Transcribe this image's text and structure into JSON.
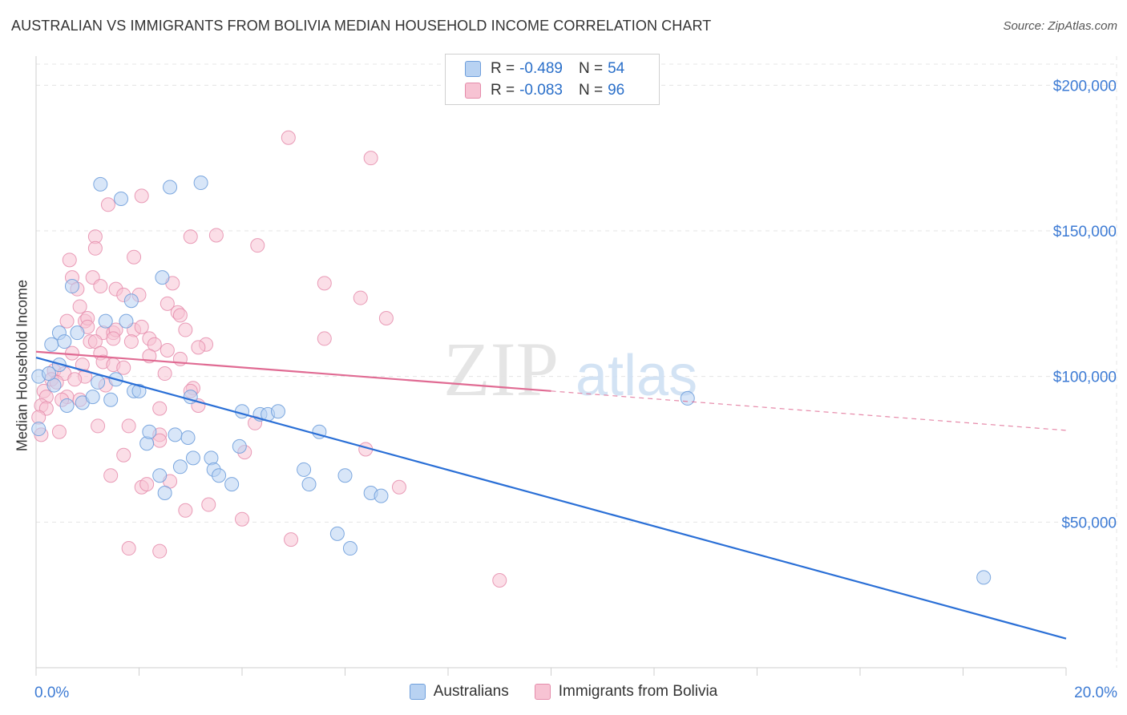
{
  "title": "AUSTRALIAN VS IMMIGRANTS FROM BOLIVIA MEDIAN HOUSEHOLD INCOME CORRELATION CHART",
  "source": "Source: ZipAtlas.com",
  "watermark": {
    "zip": "ZIP",
    "atlas": "atlas"
  },
  "colors": {
    "blue": "#2a6fd6",
    "blue_fill": "#b8d2f2",
    "blue_stroke": "#6f9fdc",
    "pink": "#e06b93",
    "pink_fill": "#f7c3d3",
    "pink_stroke": "#e58cab",
    "tick_text": "#3d7bd4"
  },
  "legend": {
    "rows": [
      {
        "r_label": "R =",
        "r_value": "-0.489",
        "n_label": "N =",
        "n_value": "54"
      },
      {
        "r_label": "R =",
        "r_value": "-0.083",
        "n_label": "N =",
        "n_value": "96"
      }
    ]
  },
  "bottom_legend": {
    "series1": "Australians",
    "series2": "Immigrants from Bolivia"
  },
  "chart_data": {
    "type": "scatter",
    "title": "AUSTRALIAN VS IMMIGRANTS FROM BOLIVIA MEDIAN HOUSEHOLD INCOME CORRELATION CHART",
    "xlabel": "",
    "ylabel": "Median Household Income",
    "xlim": [
      0,
      20
    ],
    "ylim": [
      0,
      210000
    ],
    "x_tick_labels": [
      "0.0%",
      "20.0%"
    ],
    "y_ticks": [
      50000,
      100000,
      150000,
      200000
    ],
    "y_tick_labels": [
      "$50,000",
      "$100,000",
      "$150,000",
      "$200,000"
    ],
    "grid": true,
    "legend_placement": "top-center",
    "series": [
      {
        "name": "Australians",
        "color": "#6f9fdc",
        "r": -0.489,
        "n": 54,
        "trend": {
          "x": [
            0,
            20
          ],
          "y": [
            106500,
            10000
          ]
        },
        "points": [
          [
            1.25,
            166000
          ],
          [
            1.65,
            161000
          ],
          [
            2.6,
            165000
          ],
          [
            3.2,
            166500
          ],
          [
            0.05,
            100000
          ],
          [
            0.05,
            82000
          ],
          [
            0.3,
            111000
          ],
          [
            0.45,
            115000
          ],
          [
            0.55,
            112000
          ],
          [
            0.7,
            131000
          ],
          [
            0.8,
            115000
          ],
          [
            0.45,
            104000
          ],
          [
            0.35,
            97000
          ],
          [
            0.25,
            101000
          ],
          [
            0.9,
            91000
          ],
          [
            1.1,
            93000
          ],
          [
            1.2,
            98000
          ],
          [
            1.35,
            119000
          ],
          [
            1.55,
            99000
          ],
          [
            1.45,
            92000
          ],
          [
            1.75,
            119000
          ],
          [
            1.85,
            126000
          ],
          [
            1.9,
            95000
          ],
          [
            2.0,
            95000
          ],
          [
            2.15,
            77000
          ],
          [
            2.2,
            81000
          ],
          [
            2.4,
            66000
          ],
          [
            2.45,
            134000
          ],
          [
            2.5,
            60000
          ],
          [
            2.8,
            69000
          ],
          [
            2.7,
            80000
          ],
          [
            2.95,
            79000
          ],
          [
            3.0,
            93000
          ],
          [
            3.05,
            72000
          ],
          [
            3.4,
            72000
          ],
          [
            3.45,
            68000
          ],
          [
            3.55,
            66000
          ],
          [
            3.8,
            63000
          ],
          [
            3.95,
            76000
          ],
          [
            4.0,
            88000
          ],
          [
            4.35,
            87000
          ],
          [
            4.5,
            87000
          ],
          [
            4.7,
            88000
          ],
          [
            5.2,
            68000
          ],
          [
            5.3,
            63000
          ],
          [
            5.5,
            81000
          ],
          [
            5.85,
            46000
          ],
          [
            6.0,
            66000
          ],
          [
            6.1,
            41000
          ],
          [
            6.5,
            60000
          ],
          [
            6.7,
            59000
          ],
          [
            12.65,
            92500
          ],
          [
            18.4,
            31000
          ],
          [
            0.6,
            90000
          ]
        ]
      },
      {
        "name": "Immigrants from Bolivia",
        "color": "#e58cab",
        "r": -0.083,
        "n": 96,
        "trend": {
          "x": [
            0,
            10
          ],
          "y": [
            108500,
            95000
          ]
        },
        "trend_dashed": {
          "x": [
            10,
            20
          ],
          "y": [
            95000,
            81500
          ]
        },
        "points": [
          [
            4.9,
            182000
          ],
          [
            6.5,
            175000
          ],
          [
            2.05,
            162000
          ],
          [
            1.4,
            159000
          ],
          [
            3.0,
            148000
          ],
          [
            3.5,
            148500
          ],
          [
            1.15,
            148000
          ],
          [
            1.15,
            144000
          ],
          [
            4.3,
            145000
          ],
          [
            1.9,
            141000
          ],
          [
            0.65,
            140000
          ],
          [
            0.7,
            134000
          ],
          [
            1.1,
            134000
          ],
          [
            1.25,
            131000
          ],
          [
            0.8,
            130000
          ],
          [
            1.55,
            130000
          ],
          [
            1.7,
            128000
          ],
          [
            2.0,
            128000
          ],
          [
            2.65,
            132000
          ],
          [
            5.6,
            132000
          ],
          [
            6.3,
            127000
          ],
          [
            6.8,
            120000
          ],
          [
            2.55,
            125000
          ],
          [
            2.75,
            122000
          ],
          [
            2.8,
            121000
          ],
          [
            0.85,
            124000
          ],
          [
            0.95,
            119000
          ],
          [
            1.0,
            120000
          ],
          [
            0.6,
            119000
          ],
          [
            1.0,
            117000
          ],
          [
            1.3,
            115000
          ],
          [
            1.5,
            115000
          ],
          [
            1.55,
            116000
          ],
          [
            1.9,
            116000
          ],
          [
            2.05,
            117000
          ],
          [
            2.9,
            116000
          ],
          [
            3.3,
            111000
          ],
          [
            5.6,
            113000
          ],
          [
            1.5,
            113000
          ],
          [
            1.85,
            112000
          ],
          [
            2.2,
            113000
          ],
          [
            2.3,
            111000
          ],
          [
            2.55,
            109000
          ],
          [
            3.15,
            110000
          ],
          [
            1.05,
            112000
          ],
          [
            1.15,
            112000
          ],
          [
            1.25,
            108000
          ],
          [
            0.7,
            108000
          ],
          [
            1.3,
            105000
          ],
          [
            2.2,
            107000
          ],
          [
            2.8,
            106000
          ],
          [
            0.9,
            104000
          ],
          [
            1.5,
            104000
          ],
          [
            1.7,
            103000
          ],
          [
            0.35,
            102000
          ],
          [
            0.55,
            101000
          ],
          [
            0.95,
            100000
          ],
          [
            2.5,
            101000
          ],
          [
            0.3,
            99000
          ],
          [
            0.4,
            98000
          ],
          [
            0.75,
            99000
          ],
          [
            1.35,
            97000
          ],
          [
            3.05,
            96000
          ],
          [
            3.0,
            95000
          ],
          [
            0.15,
            95000
          ],
          [
            0.2,
            93000
          ],
          [
            0.6,
            93000
          ],
          [
            0.85,
            92000
          ],
          [
            0.5,
            92000
          ],
          [
            0.1,
            90000
          ],
          [
            0.2,
            89000
          ],
          [
            2.4,
            89000
          ],
          [
            3.15,
            90000
          ],
          [
            0.05,
            86000
          ],
          [
            0.1,
            80000
          ],
          [
            0.45,
            81000
          ],
          [
            1.2,
            83000
          ],
          [
            1.8,
            83000
          ],
          [
            2.4,
            80000
          ],
          [
            2.4,
            78000
          ],
          [
            4.25,
            84000
          ],
          [
            4.05,
            74000
          ],
          [
            6.4,
            75000
          ],
          [
            1.7,
            73000
          ],
          [
            1.45,
            66000
          ],
          [
            2.05,
            62000
          ],
          [
            2.15,
            63000
          ],
          [
            7.05,
            62000
          ],
          [
            3.35,
            56000
          ],
          [
            2.9,
            54000
          ],
          [
            4.0,
            51000
          ],
          [
            4.95,
            44000
          ],
          [
            1.8,
            41000
          ],
          [
            2.4,
            40000
          ],
          [
            9.0,
            30000
          ],
          [
            2.6,
            64000
          ]
        ]
      }
    ]
  }
}
